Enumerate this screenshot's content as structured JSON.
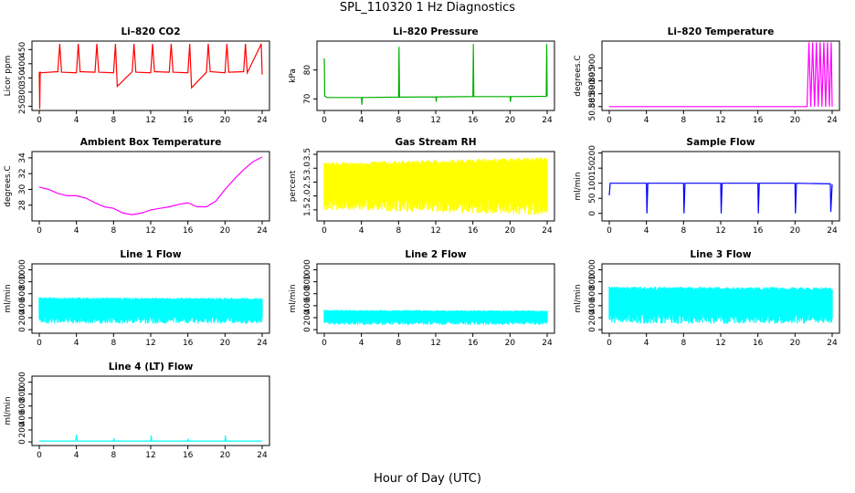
{
  "figure": {
    "title": "SPL_110320  1 Hz Diagnostics",
    "xlabel": "Hour of Day (UTC)"
  },
  "chart_data": [
    {
      "type": "line",
      "title": "Li–820 CO2",
      "ylabel": "Licor ppm",
      "color": "#ff0000",
      "xlim": [
        0,
        24
      ],
      "ylim": [
        235,
        480
      ],
      "xticks": [
        0,
        4,
        8,
        12,
        16,
        20,
        24
      ],
      "yticks": [
        250,
        300,
        350,
        400,
        450
      ],
      "series": [
        {
          "x": [
            0,
            0.05,
            0.1,
            0.2,
            2,
            2.2,
            2.4,
            4,
            4.2,
            4.4,
            6,
            6.2,
            6.4,
            8,
            8.2,
            8.4,
            10,
            10.2,
            10.4,
            12,
            12.2,
            12.4,
            14,
            14.2,
            14.4,
            16,
            16.2,
            16.4,
            18,
            18.2,
            18.4,
            20,
            20.2,
            20.4,
            22,
            22.2,
            22.4,
            23.9,
            24
          ],
          "y": [
            370,
            240,
            370,
            368,
            372,
            470,
            370,
            368,
            470,
            372,
            370,
            470,
            370,
            368,
            470,
            320,
            372,
            470,
            370,
            368,
            470,
            372,
            370,
            470,
            370,
            368,
            470,
            315,
            370,
            470,
            372,
            368,
            470,
            370,
            372,
            470,
            368,
            470,
            362
          ]
        }
      ]
    },
    {
      "type": "line",
      "title": "Li–820 Pressure",
      "ylabel": "kPa",
      "color": "#00b000",
      "xlim": [
        0,
        24
      ],
      "ylim": [
        66,
        90
      ],
      "xticks": [
        0,
        4,
        8,
        12,
        16,
        20,
        24
      ],
      "yticks": [
        70,
        80
      ],
      "series": [
        {
          "x": [
            0,
            0.05,
            0.3,
            4,
            4.05,
            4.1,
            8,
            8.05,
            8.1,
            12,
            12.05,
            12.1,
            16,
            16.05,
            16.1,
            20,
            20.05,
            20.1,
            23.9,
            23.95,
            24
          ],
          "y": [
            84,
            71,
            70.5,
            70.5,
            68,
            70.5,
            70.6,
            88,
            70.6,
            70.7,
            69,
            70.7,
            70.8,
            89,
            70.8,
            70.8,
            69,
            70.8,
            70.9,
            89,
            70.9
          ]
        }
      ]
    },
    {
      "type": "line",
      "title": "Li–820 Temperature",
      "ylabel": "degrees.C",
      "color": "#ff00ff",
      "xlim": [
        0,
        24
      ],
      "ylim": [
        50.8835,
        50.9105
      ],
      "xticks": [
        0,
        4,
        8,
        12,
        16,
        20,
        24
      ],
      "yticks": [
        50.885,
        50.89,
        50.895,
        50.9
      ],
      "series": [
        {
          "x": [
            0,
            21.3,
            21.5,
            21.7,
            21.9,
            22.1,
            22.3,
            22.5,
            22.7,
            22.9,
            23.1,
            23.3,
            23.5,
            23.7,
            23.9,
            24
          ],
          "y": [
            50.885,
            50.885,
            50.91,
            50.885,
            50.91,
            50.885,
            50.91,
            50.885,
            50.91,
            50.885,
            50.91,
            50.885,
            50.91,
            50.885,
            50.91,
            50.885
          ]
        }
      ]
    },
    {
      "type": "line",
      "title": "Ambient Box Temperature",
      "ylabel": "degrees.C",
      "color": "#ff00ff",
      "xlim": [
        0,
        24
      ],
      "ylim": [
        26,
        34.8
      ],
      "xticks": [
        0,
        4,
        8,
        12,
        16,
        20,
        24
      ],
      "yticks": [
        28,
        30,
        32,
        34
      ],
      "series": [
        {
          "x": [
            0,
            1,
            2,
            3,
            4,
            5,
            6,
            7,
            8,
            9,
            10,
            11,
            12,
            13,
            14,
            15,
            16,
            17,
            18,
            19,
            20,
            21,
            22,
            23,
            24
          ],
          "y": [
            30.3,
            30,
            29.5,
            29.2,
            29.2,
            28.9,
            28.3,
            27.8,
            27.6,
            27,
            26.8,
            27,
            27.4,
            27.6,
            27.8,
            28.1,
            28.3,
            27.8,
            27.8,
            28.5,
            30,
            31.3,
            32.5,
            33.5,
            34.1
          ]
        }
      ]
    },
    {
      "type": "line",
      "title": "Gas Stream RH",
      "ylabel": "percent",
      "color": "#ffff00",
      "xlim": [
        0,
        24
      ],
      "ylim": [
        1.1,
        3.6
      ],
      "xticks": [
        0,
        4,
        8,
        12,
        16,
        20,
        24
      ],
      "yticks": [
        1.5,
        2.0,
        2.5,
        3.0,
        3.5
      ],
      "series": [
        {
          "x": [
            0,
            24
          ],
          "y_high": [
            3.2,
            3.4
          ],
          "y_low": [
            1.5,
            1.3
          ]
        }
      ]
    },
    {
      "type": "line",
      "title": "Sample Flow",
      "ylabel": "ml/min",
      "color": "#0000ff",
      "xlim": [
        0,
        24
      ],
      "ylim": [
        -25,
        205
      ],
      "xticks": [
        0,
        4,
        8,
        12,
        16,
        20,
        24
      ],
      "yticks": [
        0,
        50,
        100,
        150,
        200
      ],
      "series": [
        {
          "x": [
            0,
            0.1,
            0.3,
            4,
            4.05,
            4.15,
            8,
            8.05,
            8.15,
            12,
            12.05,
            12.15,
            16,
            16.05,
            16.15,
            20,
            20.05,
            20.15,
            23.8,
            23.85,
            24
          ],
          "y": [
            60,
            100,
            100,
            100,
            0,
            100,
            100,
            0,
            100,
            100,
            0,
            100,
            100,
            0,
            100,
            100,
            0,
            100,
            98,
            5,
            96
          ]
        }
      ]
    },
    {
      "type": "line",
      "title": "Line 1 Flow",
      "ylabel": "ml/min",
      "color": "#00ffff",
      "xlim": [
        0,
        24
      ],
      "ylim": [
        -60,
        1100
      ],
      "xticks": [
        0,
        4,
        8,
        12,
        16,
        20,
        24
      ],
      "yticks": [
        0,
        200,
        400,
        600,
        800,
        1000
      ],
      "series": [
        {
          "x": [
            0,
            24
          ],
          "y_high": [
            540,
            530
          ],
          "y_low": [
            100,
            100
          ]
        }
      ]
    },
    {
      "type": "line",
      "title": "Line 2 Flow",
      "ylabel": "ml/min",
      "color": "#00ffff",
      "xlim": [
        0,
        24
      ],
      "ylim": [
        -60,
        1100
      ],
      "xticks": [
        0,
        4,
        8,
        12,
        16,
        20,
        24
      ],
      "yticks": [
        0,
        200,
        400,
        600,
        800,
        1000
      ],
      "series": [
        {
          "x": [
            0,
            24
          ],
          "y_high": [
            330,
            320
          ],
          "y_low": [
            80,
            80
          ]
        }
      ]
    },
    {
      "type": "line",
      "title": "Line 3 Flow",
      "ylabel": "ml/min",
      "color": "#00ffff",
      "xlim": [
        0,
        24
      ],
      "ylim": [
        -60,
        1100
      ],
      "xticks": [
        0,
        4,
        8,
        12,
        16,
        20,
        24
      ],
      "yticks": [
        0,
        200,
        400,
        600,
        800,
        1000
      ],
      "series": [
        {
          "x": [
            0,
            24
          ],
          "y_high": [
            720,
            710
          ],
          "y_low": [
            100,
            100
          ]
        }
      ]
    },
    {
      "type": "line",
      "title": "Line 4 (LT) Flow",
      "ylabel": "ml/min",
      "color": "#00ffff",
      "xlim": [
        0,
        24
      ],
      "ylim": [
        -60,
        1100
      ],
      "xticks": [
        0,
        4,
        8,
        12,
        16,
        20,
        24
      ],
      "yticks": [
        0,
        200,
        400,
        600,
        800,
        1000
      ],
      "series": [
        {
          "x": [
            0,
            3.9,
            4,
            4.1,
            8,
            8.05,
            8.1,
            12,
            12.05,
            12.1,
            16,
            16.05,
            16.1,
            20,
            20.05,
            20.1,
            24
          ],
          "y": [
            15,
            15,
            120,
            15,
            15,
            60,
            15,
            15,
            110,
            15,
            15,
            50,
            15,
            15,
            110,
            15,
            15
          ]
        }
      ]
    }
  ]
}
